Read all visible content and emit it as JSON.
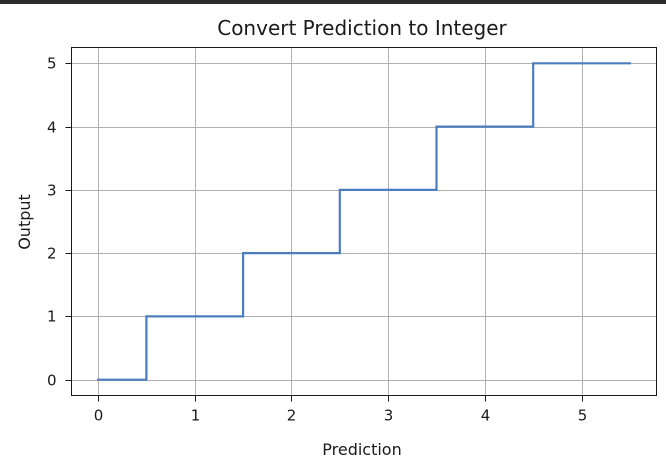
{
  "chart_data": {
    "type": "line",
    "title": "Convert Prediction to Integer",
    "xlabel": "Prediction",
    "ylabel": "Output",
    "xlim": [
      -0.275,
      5.775
    ],
    "ylim": [
      -0.25,
      5.25
    ],
    "xticks": [
      0,
      1,
      2,
      3,
      4,
      5
    ],
    "yticks": [
      0,
      1,
      2,
      3,
      4,
      5
    ],
    "x_tick_labels": [
      "0",
      "1",
      "2",
      "3",
      "4",
      "5"
    ],
    "y_tick_labels": [
      "0",
      "1",
      "2",
      "3",
      "4",
      "5"
    ],
    "grid": true,
    "series": [
      {
        "color": "#4c7ebf",
        "x": [
          0,
          0.5,
          0.5,
          1.5,
          1.5,
          2.5,
          2.5,
          3.5,
          3.5,
          4.5,
          4.5,
          5.5
        ],
        "y": [
          0,
          0,
          1,
          1,
          2,
          2,
          3,
          3,
          4,
          4,
          5,
          5
        ]
      }
    ]
  },
  "colors": {
    "axes": "#1a1a1a",
    "grid": "#b0b0b0",
    "line": "#4c7ebf",
    "frame_bar": "#2b2b2b"
  }
}
